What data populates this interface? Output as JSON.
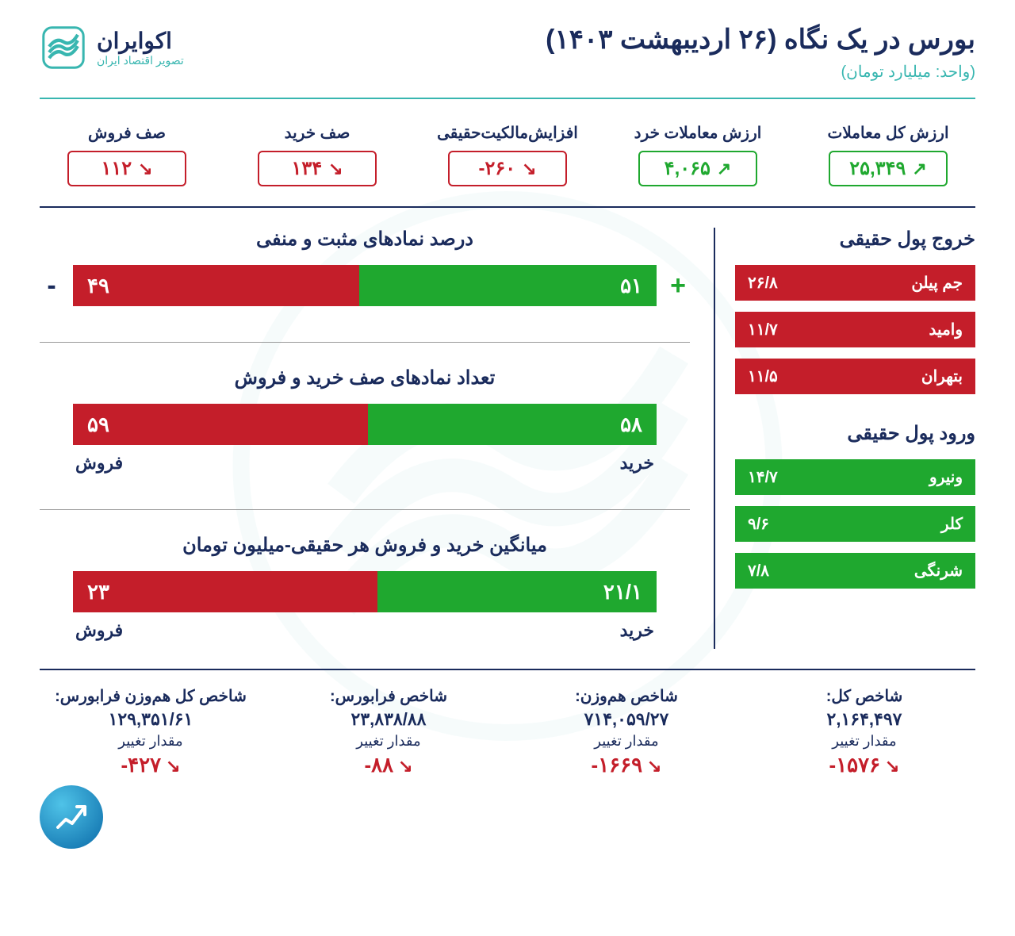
{
  "colors": {
    "navy": "#1a2b5c",
    "teal": "#38b6b0",
    "green": "#1fa82f",
    "red": "#c41e2a",
    "white": "#ffffff"
  },
  "header": {
    "title": "بورس در یک نگاه (۲۶ اردیبهشت ۱۴۰۳)",
    "subtitle": "(واحد: میلیارد تومان)",
    "logo_name": "اکوایران",
    "logo_tag": "تصویر اقتصاد ایران"
  },
  "kpis": [
    {
      "label": "ارزش کل معاملات",
      "value": "۲۵,۳۴۹",
      "dir": "up",
      "tone": "green"
    },
    {
      "label": "ارزش معاملات خرد",
      "value": "۴,۰۶۵",
      "dir": "up",
      "tone": "green"
    },
    {
      "label": "افزایش‌مالکیت‌حقیقی",
      "value": "۲۶۰-",
      "dir": "down",
      "tone": "red"
    },
    {
      "label": "صف خرید",
      "value": "۱۳۴",
      "dir": "down",
      "tone": "red"
    },
    {
      "label": "صف فروش",
      "value": "۱۱۲",
      "dir": "down",
      "tone": "red"
    }
  ],
  "outflow": {
    "title": "خروج پول حقیقی",
    "items": [
      {
        "name": "جم پیلن",
        "value": "۲۶/۸"
      },
      {
        "name": "وامید",
        "value": "۱۱/۷"
      },
      {
        "name": "بتهران",
        "value": "۱۱/۵"
      }
    ]
  },
  "inflow": {
    "title": "ورود پول حقیقی",
    "items": [
      {
        "name": "ونیرو",
        "value": "۱۴/۷"
      },
      {
        "name": "کلر",
        "value": "۹/۶"
      },
      {
        "name": "شرنگی",
        "value": "۷/۸"
      }
    ]
  },
  "chart1": {
    "title": "درصد نمادهای مثبت و منفی",
    "pos_value": "۵۱",
    "pos_width": 51,
    "neg_value": "۴۹",
    "neg_width": 49,
    "pos_sign": "+",
    "neg_sign": "-"
  },
  "chart2": {
    "title": "تعداد نمادهای صف خرید و فروش",
    "buy_value": "۵۸",
    "buy_width": 49.5,
    "sell_value": "۵۹",
    "sell_width": 50.5,
    "buy_label": "خرید",
    "sell_label": "فروش"
  },
  "chart3": {
    "title": "میانگین خرید و فروش هر حقیقی-میلیون تومان",
    "buy_value": "۲۱/۱",
    "buy_width": 47.8,
    "sell_value": "۲۳",
    "sell_width": 52.2,
    "buy_label": "خرید",
    "sell_label": "فروش"
  },
  "indices": [
    {
      "title": "شاخص کل:",
      "value": "۲,۱۶۴,۴۹۷",
      "change_label": "مقدار تغییر",
      "change": "۱۵۷۶-",
      "dir": "down",
      "tone": "red"
    },
    {
      "title": "شاخص هم‌وزن:",
      "value": "۷۱۴,۰۵۹/۲۷",
      "change_label": "مقدار تغییر",
      "change": "۱۶۶۹-",
      "dir": "down",
      "tone": "red"
    },
    {
      "title": "شاخص فرابورس:",
      "value": "۲۳,۸۳۸/۸۸",
      "change_label": "مقدار تغییر",
      "change": "۸۸-",
      "dir": "down",
      "tone": "red"
    },
    {
      "title": "شاخص کل هم‌وزن فرابورس:",
      "value": "۱۲۹,۳۵۱/۶۱",
      "change_label": "مقدار تغییر",
      "change": "۴۲۷-",
      "dir": "down",
      "tone": "red"
    }
  ]
}
